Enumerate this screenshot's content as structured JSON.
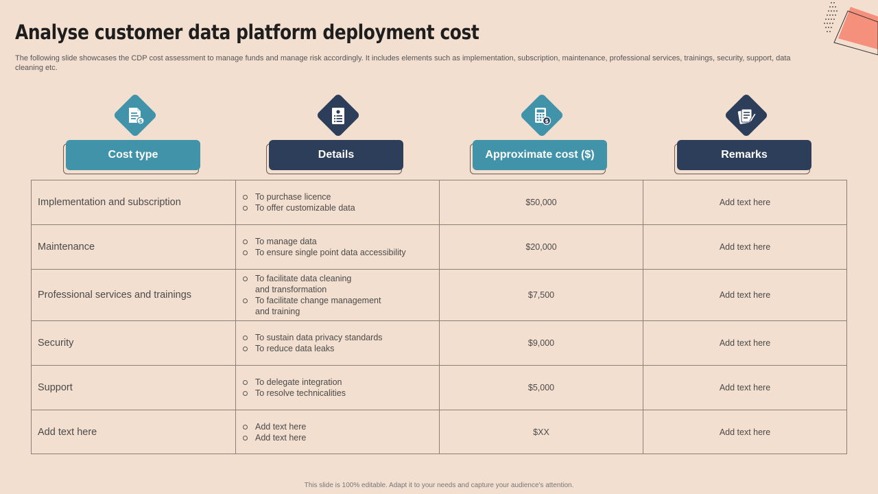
{
  "title": "Analyse customer data platform deployment cost",
  "subtitle": "The following slide showcases the CDP cost assessment to manage funds and manage risk accordingly. It includes elements such as implementation, subscription, maintenance, professional services, trainings, security, support, data cleaning etc.",
  "colors": {
    "teal": "#4193aa",
    "navy": "#2d3e5a",
    "background": "#f3dfcf",
    "accent": "#f4907c"
  },
  "headers": [
    {
      "label": "Cost type",
      "icon": "cost-document-icon"
    },
    {
      "label": "Details",
      "icon": "id-badge-icon"
    },
    {
      "label": "Approximate cost ($)",
      "icon": "calculator-dollar-icon"
    },
    {
      "label": "Remarks",
      "icon": "notes-pencil-icon"
    }
  ],
  "rows": [
    {
      "type": "Implementation and subscription",
      "details": [
        "To purchase licence",
        "To offer customizable data"
      ],
      "cost": "$50,000",
      "remarks": "Add text here"
    },
    {
      "type": "Maintenance",
      "details": [
        "To manage data",
        "To ensure single point data accessibility"
      ],
      "cost": "$20,000",
      "remarks": "Add text here"
    },
    {
      "type": "Professional services and trainings",
      "details": [
        "To facilitate data cleaning\nand transformation",
        "To facilitate change management\nand training"
      ],
      "cost": "$7,500",
      "remarks": "Add text here"
    },
    {
      "type": "Security",
      "details": [
        "To sustain data privacy standards",
        "To reduce data leaks"
      ],
      "cost": "$9,000",
      "remarks": "Add text here"
    },
    {
      "type": "Support",
      "details": [
        "To delegate integration",
        "To resolve technicalities"
      ],
      "cost": "$5,000",
      "remarks": "Add text here"
    },
    {
      "type": "Add text here",
      "details": [
        "Add text here",
        "Add text here"
      ],
      "cost": "$XX",
      "remarks": "Add text here"
    }
  ],
  "footer": "This slide is 100% editable. Adapt it to your needs and capture your audience's attention."
}
